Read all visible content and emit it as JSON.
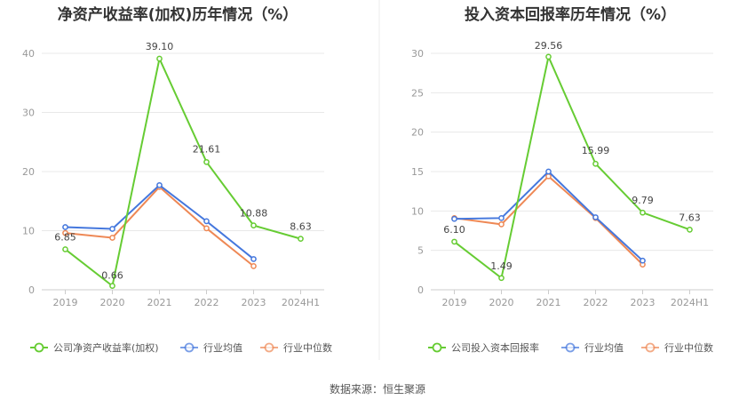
{
  "source": "数据来源：恒生聚源",
  "colors": {
    "company": "#66cc33",
    "avg": "#4477dd",
    "median": "#ee8855",
    "grid": "#e8e8e8",
    "axis": "#cccccc"
  },
  "chart_data": [
    {
      "type": "line",
      "title": "净资产收益率(加权)历年情况（%）",
      "categories": [
        "2019",
        "2020",
        "2021",
        "2022",
        "2023",
        "2024H1"
      ],
      "ylim": [
        0,
        40
      ],
      "yticks": [
        0,
        10,
        20,
        30,
        40
      ],
      "grid": true,
      "legend_position": "bottom",
      "series": [
        {
          "name": "公司净资产收益率(加权)",
          "values": [
            6.85,
            0.66,
            39.1,
            21.61,
            10.88,
            8.63
          ],
          "labels": [
            "6.85",
            "0.66",
            "39.10",
            "21.61",
            "10.88",
            "8.63"
          ]
        },
        {
          "name": "行业均值",
          "values": [
            10.6,
            10.3,
            17.7,
            11.6,
            5.2,
            null
          ]
        },
        {
          "name": "行业中位数",
          "values": [
            9.6,
            8.8,
            17.4,
            10.4,
            4.0,
            null
          ]
        }
      ]
    },
    {
      "type": "line",
      "title": "投入资本回报率历年情况（%）",
      "categories": [
        "2019",
        "2020",
        "2021",
        "2022",
        "2023",
        "2024H1"
      ],
      "ylim": [
        0,
        30
      ],
      "yticks": [
        0,
        5,
        10,
        15,
        20,
        25,
        30
      ],
      "grid": true,
      "legend_position": "bottom",
      "series": [
        {
          "name": "公司投入资本回报率",
          "values": [
            6.1,
            1.49,
            29.56,
            15.99,
            9.79,
            7.63
          ],
          "labels": [
            "6.10",
            "1.49",
            "29.56",
            "15.99",
            "9.79",
            "7.63"
          ]
        },
        {
          "name": "行业均值",
          "values": [
            9.0,
            9.1,
            15.0,
            9.2,
            3.7,
            null
          ]
        },
        {
          "name": "行业中位数",
          "values": [
            9.1,
            8.3,
            14.4,
            9.1,
            3.2,
            null
          ]
        }
      ]
    }
  ]
}
